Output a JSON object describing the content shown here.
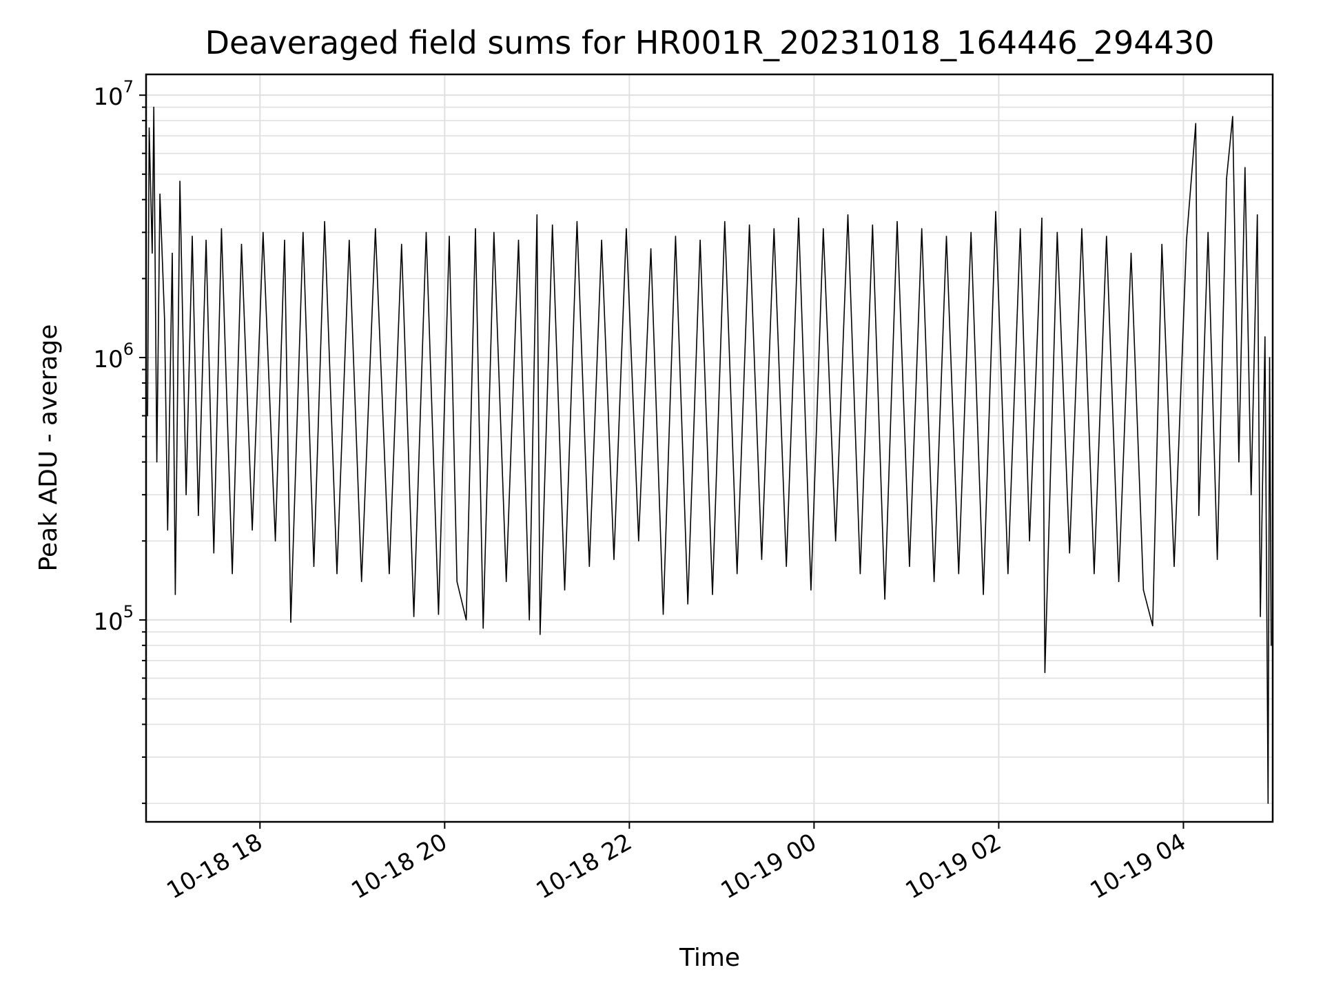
{
  "chart_data": {
    "type": "line",
    "title": "Deaveraged field sums for HR001R_20231018_164446_294430",
    "xlabel": "Time",
    "ylabel": "Peak ADU - average",
    "x_scale": "time",
    "y_scale": "log",
    "xlim": [
      "2023-10-18T16:46:00",
      "2023-10-19T04:58:00"
    ],
    "ylim": [
      17000,
      12000000
    ],
    "x_ticks": [
      {
        "value": "2023-10-18T18:00:00",
        "label": "10-18 18"
      },
      {
        "value": "2023-10-18T20:00:00",
        "label": "10-18 20"
      },
      {
        "value": "2023-10-18T22:00:00",
        "label": "10-18 22"
      },
      {
        "value": "2023-10-19T00:00:00",
        "label": "10-19 00"
      },
      {
        "value": "2023-10-19T02:00:00",
        "label": "10-19 02"
      },
      {
        "value": "2023-10-19T04:00:00",
        "label": "10-19 04"
      }
    ],
    "y_ticks": [
      {
        "value": 100000,
        "base": "10",
        "exp": "5"
      },
      {
        "value": 1000000,
        "base": "10",
        "exp": "6"
      },
      {
        "value": 10000000,
        "base": "10",
        "exp": "7"
      }
    ],
    "grid": true,
    "legend": "none",
    "colors": {
      "line": "#000000",
      "grid": "#e0e0e0",
      "axes": "#000000",
      "background": "#ffffff"
    },
    "series": [
      {
        "points": [
          [
            "2023-10-18T16:47:00",
            600000
          ],
          [
            "2023-10-18T16:48:00",
            7500000
          ],
          [
            "2023-10-18T16:50:00",
            2500000
          ],
          [
            "2023-10-18T16:51:00",
            9000000
          ],
          [
            "2023-10-18T16:53:00",
            400000
          ],
          [
            "2023-10-18T16:55:00",
            4200000
          ],
          [
            "2023-10-18T16:58:00",
            1400000
          ],
          [
            "2023-10-18T17:00:00",
            220000
          ],
          [
            "2023-10-18T17:03:00",
            2500000
          ],
          [
            "2023-10-18T17:05:00",
            125000
          ],
          [
            "2023-10-18T17:08:00",
            4700000
          ],
          [
            "2023-10-18T17:12:00",
            300000
          ],
          [
            "2023-10-18T17:16:00",
            2900000
          ],
          [
            "2023-10-18T17:20:00",
            250000
          ],
          [
            "2023-10-18T17:25:00",
            2800000
          ],
          [
            "2023-10-18T17:30:00",
            180000
          ],
          [
            "2023-10-18T17:35:00",
            3100000
          ],
          [
            "2023-10-18T17:42:00",
            150000
          ],
          [
            "2023-10-18T17:48:00",
            2700000
          ],
          [
            "2023-10-18T17:55:00",
            220000
          ],
          [
            "2023-10-18T18:02:00",
            3000000
          ],
          [
            "2023-10-18T18:10:00",
            200000
          ],
          [
            "2023-10-18T18:16:00",
            2800000
          ],
          [
            "2023-10-18T18:20:00",
            98000
          ],
          [
            "2023-10-18T18:28:00",
            3000000
          ],
          [
            "2023-10-18T18:35:00",
            160000
          ],
          [
            "2023-10-18T18:42:00",
            3300000
          ],
          [
            "2023-10-18T18:50:00",
            150000
          ],
          [
            "2023-10-18T18:58:00",
            2800000
          ],
          [
            "2023-10-18T19:06:00",
            140000
          ],
          [
            "2023-10-18T19:15:00",
            3100000
          ],
          [
            "2023-10-18T19:24:00",
            150000
          ],
          [
            "2023-10-18T19:32:00",
            2700000
          ],
          [
            "2023-10-18T19:40:00",
            103000
          ],
          [
            "2023-10-18T19:48:00",
            3000000
          ],
          [
            "2023-10-18T19:56:00",
            105000
          ],
          [
            "2023-10-18T20:03:00",
            2900000
          ],
          [
            "2023-10-18T20:08:00",
            140000
          ],
          [
            "2023-10-18T20:14:00",
            100000
          ],
          [
            "2023-10-18T20:20:00",
            3100000
          ],
          [
            "2023-10-18T20:25:00",
            93000
          ],
          [
            "2023-10-18T20:32:00",
            3000000
          ],
          [
            "2023-10-18T20:40:00",
            140000
          ],
          [
            "2023-10-18T20:48:00",
            2800000
          ],
          [
            "2023-10-18T20:55:00",
            100000
          ],
          [
            "2023-10-18T21:00:00",
            3500000
          ],
          [
            "2023-10-18T21:02:00",
            88000
          ],
          [
            "2023-10-18T21:10:00",
            3200000
          ],
          [
            "2023-10-18T21:18:00",
            130000
          ],
          [
            "2023-10-18T21:26:00",
            3300000
          ],
          [
            "2023-10-18T21:34:00",
            160000
          ],
          [
            "2023-10-18T21:42:00",
            2800000
          ],
          [
            "2023-10-18T21:50:00",
            170000
          ],
          [
            "2023-10-18T21:58:00",
            3100000
          ],
          [
            "2023-10-18T22:06:00",
            200000
          ],
          [
            "2023-10-18T22:14:00",
            2600000
          ],
          [
            "2023-10-18T22:22:00",
            105000
          ],
          [
            "2023-10-18T22:30:00",
            2900000
          ],
          [
            "2023-10-18T22:38:00",
            115000
          ],
          [
            "2023-10-18T22:46:00",
            2800000
          ],
          [
            "2023-10-18T22:54:00",
            125000
          ],
          [
            "2023-10-18T23:02:00",
            3300000
          ],
          [
            "2023-10-18T23:10:00",
            150000
          ],
          [
            "2023-10-18T23:18:00",
            3200000
          ],
          [
            "2023-10-18T23:26:00",
            170000
          ],
          [
            "2023-10-18T23:34:00",
            3100000
          ],
          [
            "2023-10-18T23:42:00",
            160000
          ],
          [
            "2023-10-18T23:50:00",
            3400000
          ],
          [
            "2023-10-18T23:58:00",
            130000
          ],
          [
            "2023-10-19T00:06:00",
            3100000
          ],
          [
            "2023-10-19T00:14:00",
            200000
          ],
          [
            "2023-10-19T00:22:00",
            3500000
          ],
          [
            "2023-10-19T00:30:00",
            150000
          ],
          [
            "2023-10-19T00:38:00",
            3200000
          ],
          [
            "2023-10-19T00:46:00",
            120000
          ],
          [
            "2023-10-19T00:54:00",
            3300000
          ],
          [
            "2023-10-19T01:02:00",
            160000
          ],
          [
            "2023-10-19T01:10:00",
            3100000
          ],
          [
            "2023-10-19T01:18:00",
            140000
          ],
          [
            "2023-10-19T01:26:00",
            2900000
          ],
          [
            "2023-10-19T01:34:00",
            150000
          ],
          [
            "2023-10-19T01:42:00",
            3000000
          ],
          [
            "2023-10-19T01:50:00",
            125000
          ],
          [
            "2023-10-19T01:58:00",
            3600000
          ],
          [
            "2023-10-19T02:06:00",
            150000
          ],
          [
            "2023-10-19T02:14:00",
            3100000
          ],
          [
            "2023-10-19T02:20:00",
            200000
          ],
          [
            "2023-10-19T02:28:00",
            3400000
          ],
          [
            "2023-10-19T02:30:00",
            63000
          ],
          [
            "2023-10-19T02:38:00",
            3000000
          ],
          [
            "2023-10-19T02:46:00",
            180000
          ],
          [
            "2023-10-19T02:54:00",
            3100000
          ],
          [
            "2023-10-19T03:02:00",
            150000
          ],
          [
            "2023-10-19T03:10:00",
            2900000
          ],
          [
            "2023-10-19T03:18:00",
            140000
          ],
          [
            "2023-10-19T03:26:00",
            2500000
          ],
          [
            "2023-10-19T03:34:00",
            130000
          ],
          [
            "2023-10-19T03:40:00",
            95000
          ],
          [
            "2023-10-19T03:46:00",
            2700000
          ],
          [
            "2023-10-19T03:54:00",
            160000
          ],
          [
            "2023-10-19T04:02:00",
            2800000
          ],
          [
            "2023-10-19T04:08:00",
            7800000
          ],
          [
            "2023-10-19T04:10:00",
            250000
          ],
          [
            "2023-10-19T04:16:00",
            3000000
          ],
          [
            "2023-10-19T04:22:00",
            170000
          ],
          [
            "2023-10-19T04:28:00",
            4800000
          ],
          [
            "2023-10-19T04:32:00",
            8300000
          ],
          [
            "2023-10-19T04:36:00",
            400000
          ],
          [
            "2023-10-19T04:40:00",
            5300000
          ],
          [
            "2023-10-19T04:44:00",
            300000
          ],
          [
            "2023-10-19T04:48:00",
            3500000
          ],
          [
            "2023-10-19T04:50:00",
            103000
          ],
          [
            "2023-10-19T04:53:00",
            1200000
          ],
          [
            "2023-10-19T04:55:00",
            20000
          ],
          [
            "2023-10-19T04:56:00",
            1000000
          ],
          [
            "2023-10-19T04:57:00",
            80000
          ]
        ]
      }
    ]
  }
}
